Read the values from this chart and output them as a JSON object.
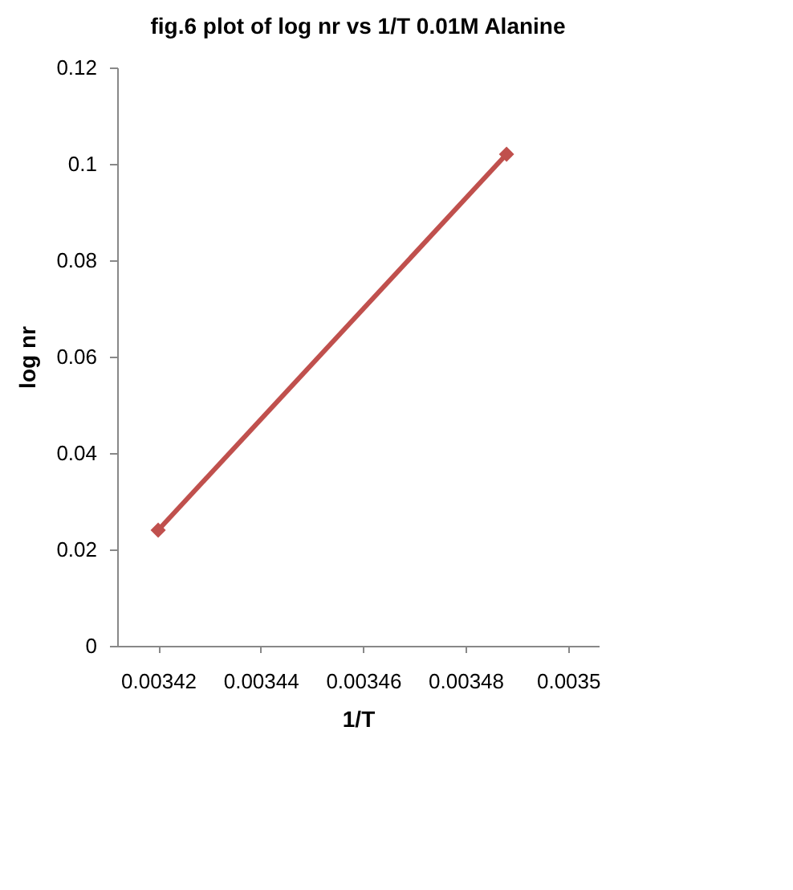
{
  "chart_data": {
    "type": "line",
    "title": "fig.6 plot of log nr vs 1/T 0.01M Alanine",
    "xlabel": "1/T",
    "ylabel": "log nr",
    "x": [
      0.00342,
      0.003488
    ],
    "series": [
      {
        "color": "#c0504d",
        "values": [
          0.024,
          0.102
        ]
      }
    ],
    "xlim": [
      0.003412,
      0.003506
    ],
    "xticks": [
      0.00342,
      0.00344,
      0.00346,
      0.00348,
      0.0035
    ],
    "ylim": [
      0,
      0.12
    ],
    "yticks": [
      0,
      0.02,
      0.04,
      0.06,
      0.08,
      0.1,
      0.12
    ],
    "grid": false,
    "marker": "diamond",
    "line_style": "solid"
  }
}
